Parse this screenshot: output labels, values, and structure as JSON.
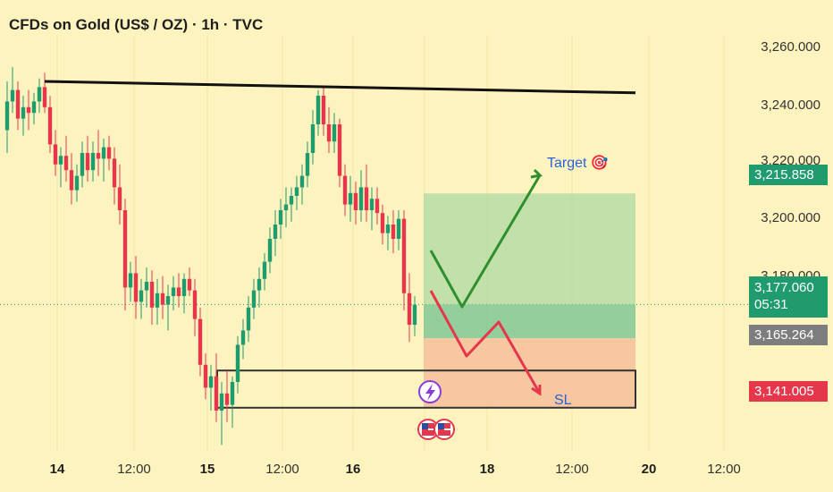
{
  "header": {
    "title": "CFDs on Gold (US$ / OZ) · 1h · TVC"
  },
  "price_axis": {
    "labels": [
      "3,260.000",
      "3,240.000",
      "3,220.000",
      "3,200.000",
      "3,180.000"
    ],
    "badges": {
      "target": {
        "text": "3,215.858",
        "color": "#1f9b6e"
      },
      "current": {
        "text": "3,177.060",
        "countdown": "05:31",
        "color": "#1f9b6e"
      },
      "entry": {
        "text": "3,165.264",
        "color": "#7d7d7d"
      },
      "stop": {
        "text": "3,141.005",
        "color": "#e5374c"
      }
    }
  },
  "time_axis": [
    {
      "text": "14",
      "bold": true
    },
    {
      "text": "12:00",
      "bold": false
    },
    {
      "text": "15",
      "bold": true
    },
    {
      "text": "12:00",
      "bold": false
    },
    {
      "text": "16",
      "bold": true
    },
    {
      "text": "18",
      "bold": true
    },
    {
      "text": "12:00",
      "bold": false
    },
    {
      "text": "20",
      "bold": true
    },
    {
      "text": "12:00",
      "bold": false
    }
  ],
  "annotations": {
    "target": "Target 🎯",
    "sl": "SL"
  },
  "colors": {
    "up": "#1f9b6e",
    "down": "#e5374c",
    "background": "#fdf3bf",
    "resistance": "#111111"
  },
  "chart_data": {
    "type": "candlestick",
    "title": "CFDs on Gold (US$ / OZ) · 1h · TVC",
    "ylim": [
      3130,
      3268
    ],
    "resistance_line": [
      3255,
      3251
    ],
    "target_level": 3215.858,
    "current_price": 3177.06,
    "entry_level": 3165.264,
    "stop_level": 3141.005,
    "support_zone": [
      3141.005,
      3154
    ],
    "candles": [
      [
        3238,
        3255,
        3230,
        3248
      ],
      [
        3248,
        3260,
        3244,
        3252
      ],
      [
        3252,
        3255,
        3238,
        3242
      ],
      [
        3242,
        3250,
        3236,
        3246
      ],
      [
        3246,
        3252,
        3238,
        3244
      ],
      [
        3244,
        3251,
        3240,
        3248
      ],
      [
        3248,
        3256,
        3244,
        3253
      ],
      [
        3253,
        3258,
        3244,
        3246
      ],
      [
        3246,
        3250,
        3230,
        3233
      ],
      [
        3233,
        3238,
        3222,
        3226
      ],
      [
        3226,
        3232,
        3218,
        3229
      ],
      [
        3229,
        3236,
        3220,
        3224
      ],
      [
        3224,
        3230,
        3212,
        3217
      ],
      [
        3217,
        3226,
        3213,
        3222
      ],
      [
        3222,
        3234,
        3218,
        3230
      ],
      [
        3230,
        3236,
        3220,
        3224
      ],
      [
        3224,
        3234,
        3220,
        3230
      ],
      [
        3230,
        3238,
        3222,
        3228
      ],
      [
        3228,
        3235,
        3220,
        3232
      ],
      [
        3232,
        3236,
        3224,
        3228
      ],
      [
        3228,
        3232,
        3212,
        3218
      ],
      [
        3218,
        3226,
        3205,
        3210
      ],
      [
        3210,
        3214,
        3175,
        3183
      ],
      [
        3183,
        3192,
        3178,
        3188
      ],
      [
        3188,
        3194,
        3172,
        3178
      ],
      [
        3178,
        3186,
        3172,
        3182
      ],
      [
        3182,
        3190,
        3176,
        3185
      ],
      [
        3185,
        3189,
        3170,
        3176
      ],
      [
        3176,
        3186,
        3170,
        3181
      ],
      [
        3181,
        3187,
        3172,
        3177
      ],
      [
        3177,
        3184,
        3168,
        3180
      ],
      [
        3180,
        3187,
        3175,
        3183
      ],
      [
        3183,
        3188,
        3176,
        3180
      ],
      [
        3180,
        3188,
        3174,
        3186
      ],
      [
        3186,
        3190,
        3180,
        3182
      ],
      [
        3182,
        3186,
        3166,
        3172
      ],
      [
        3172,
        3176,
        3152,
        3156
      ],
      [
        3156,
        3160,
        3144,
        3148
      ],
      [
        3148,
        3156,
        3140,
        3152
      ],
      [
        3152,
        3160,
        3136,
        3140
      ],
      [
        3140,
        3150,
        3128,
        3146
      ],
      [
        3146,
        3154,
        3136,
        3142
      ],
      [
        3142,
        3152,
        3134,
        3150
      ],
      [
        3150,
        3166,
        3146,
        3163
      ],
      [
        3163,
        3172,
        3158,
        3168
      ],
      [
        3168,
        3180,
        3164,
        3176
      ],
      [
        3176,
        3186,
        3172,
        3182
      ],
      [
        3182,
        3190,
        3176,
        3186
      ],
      [
        3186,
        3195,
        3182,
        3192
      ],
      [
        3192,
        3204,
        3188,
        3200
      ],
      [
        3200,
        3210,
        3194,
        3205
      ],
      [
        3205,
        3214,
        3200,
        3210
      ],
      [
        3210,
        3218,
        3204,
        3212
      ],
      [
        3212,
        3218,
        3206,
        3215
      ],
      [
        3215,
        3222,
        3210,
        3218
      ],
      [
        3218,
        3226,
        3212,
        3222
      ],
      [
        3222,
        3234,
        3218,
        3230
      ],
      [
        3230,
        3245,
        3226,
        3240
      ],
      [
        3240,
        3252,
        3236,
        3250
      ],
      [
        3250,
        3253,
        3236,
        3240
      ],
      [
        3240,
        3246,
        3230,
        3234
      ],
      [
        3234,
        3244,
        3230,
        3240
      ],
      [
        3240,
        3242,
        3218,
        3222
      ],
      [
        3222,
        3226,
        3208,
        3212
      ],
      [
        3212,
        3222,
        3206,
        3216
      ],
      [
        3216,
        3220,
        3205,
        3210
      ],
      [
        3210,
        3224,
        3206,
        3218
      ],
      [
        3218,
        3226,
        3206,
        3210
      ],
      [
        3210,
        3218,
        3203,
        3214
      ],
      [
        3214,
        3218,
        3205,
        3209
      ],
      [
        3209,
        3212,
        3198,
        3202
      ],
      [
        3202,
        3208,
        3196,
        3205
      ],
      [
        3205,
        3210,
        3195,
        3200
      ],
      [
        3200,
        3210,
        3196,
        3207
      ],
      [
        3207,
        3210,
        3175,
        3181
      ],
      [
        3181,
        3188,
        3164,
        3170
      ],
      [
        3170,
        3180,
        3166,
        3177
      ]
    ]
  }
}
